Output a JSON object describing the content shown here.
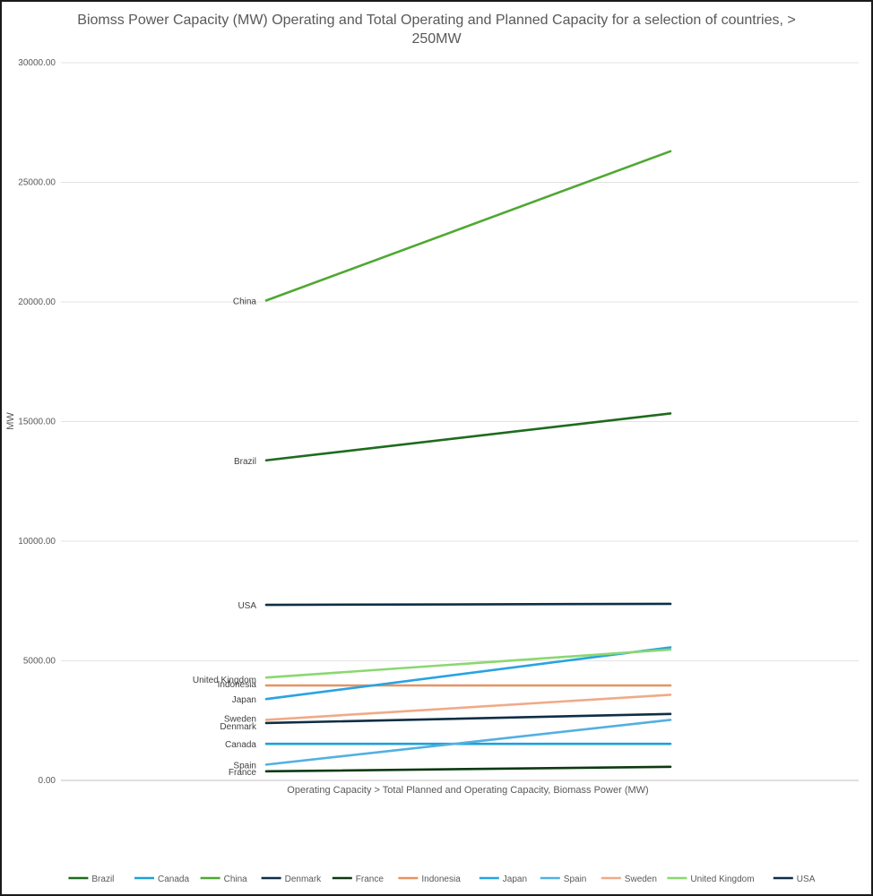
{
  "chart_data": {
    "type": "line",
    "title": "Biomss Power Capacity (MW) Operating and Total Operating and Planned Capacity for a selection of countries, > 250MW",
    "ylabel": "MW",
    "xlabel": "Operating Capacity > Total Planned and Operating Capacity, Biomass Power (MW)",
    "x": [
      "Operating Capacity",
      "Total Planned and Operating Capacity"
    ],
    "ylim": [
      0,
      30000
    ],
    "y_ticks": [
      "0.00",
      "5000.00",
      "10000.00",
      "15000.00",
      "20000.00",
      "25000.00",
      "30000.00"
    ],
    "grid": true,
    "legend_position": "bottom",
    "series": [
      {
        "name": "Brazil",
        "values": [
          13380,
          15340
        ],
        "color": "#1e6b1e"
      },
      {
        "name": "Canada",
        "values": [
          1530,
          1530
        ],
        "color": "#1fa0d8"
      },
      {
        "name": "China",
        "values": [
          20060,
          26300
        ],
        "color": "#4fa832"
      },
      {
        "name": "Denmark",
        "values": [
          2400,
          2780
        ],
        "color": "#0f2e45"
      },
      {
        "name": "France",
        "values": [
          380,
          570
        ],
        "color": "#0c3a12"
      },
      {
        "name": "Indonesia",
        "values": [
          3970,
          3970
        ],
        "color": "#e59363"
      },
      {
        "name": "Japan",
        "values": [
          3400,
          5560
        ],
        "color": "#27a3e3"
      },
      {
        "name": "Spain",
        "values": [
          660,
          2530
        ],
        "color": "#53b0e0"
      },
      {
        "name": "Sweden",
        "values": [
          2530,
          3580
        ],
        "color": "#f0aa88"
      },
      {
        "name": "United Kingdom",
        "values": [
          4300,
          5470
        ],
        "color": "#8ad870"
      },
      {
        "name": "USA",
        "values": [
          7340,
          7380
        ],
        "color": "#0f2e45"
      }
    ]
  }
}
